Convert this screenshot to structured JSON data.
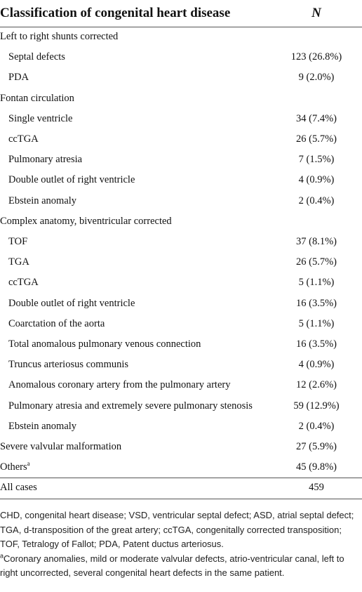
{
  "table": {
    "header": [
      "Classification of congenital heart disease",
      "N"
    ],
    "rows": [
      {
        "label": "Left to right shunts corrected",
        "indent": false
      },
      {
        "label": "Septal defects",
        "n": "123 (26.8%)",
        "indent": true
      },
      {
        "label": "PDA",
        "n": "9 (2.0%)",
        "indent": true
      },
      {
        "label": "Fontan circulation",
        "indent": false
      },
      {
        "label": "Single ventricle",
        "n": "34 (7.4%)",
        "indent": true
      },
      {
        "label": "ccTGA",
        "n": "26 (5.7%)",
        "indent": true
      },
      {
        "label": "Pulmonary atresia",
        "n": "7 (1.5%)",
        "indent": true
      },
      {
        "label": "Double outlet of right ventricle",
        "n": "4 (0.9%)",
        "indent": true
      },
      {
        "label": "Ebstein anomaly",
        "n": "2 (0.4%)",
        "indent": true
      },
      {
        "label": "Complex anatomy, biventricular corrected",
        "indent": false
      },
      {
        "label": "TOF",
        "n": "37 (8.1%)",
        "indent": true
      },
      {
        "label": "TGA",
        "n": "26 (5.7%)",
        "indent": true
      },
      {
        "label": "ccTGA",
        "n": "5 (1.1%)",
        "indent": true
      },
      {
        "label": "Double outlet of right ventricle",
        "n": "16 (3.5%)",
        "indent": true
      },
      {
        "label": "Coarctation of the aorta",
        "n": "5 (1.1%)",
        "indent": true
      },
      {
        "label": "Total anomalous pulmonary venous connection",
        "n": "16 (3.5%)",
        "indent": true
      },
      {
        "label": "Truncus arteriosus communis",
        "n": "4 (0.9%)",
        "indent": true
      },
      {
        "label": "Anomalous coronary artery from the pulmonary artery",
        "n": "12 (2.6%)",
        "indent": true
      },
      {
        "label": "Pulmonary atresia and extremely severe pulmonary stenosis",
        "n": "59 (12.9%)",
        "indent": true
      },
      {
        "label": "Ebstein anomaly",
        "n": "2 (0.4%)",
        "indent": true
      },
      {
        "label": "Severe valvular malformation",
        "n": "27 (5.9%)",
        "indent": false
      },
      {
        "label": "Others",
        "note": "a",
        "n": "45 (9.8%)",
        "indent": false
      },
      {
        "label": "All cases",
        "n": "459",
        "indent": false,
        "rule_above": true
      }
    ]
  },
  "footnotes": [
    "CHD, congenital heart disease; VSD, ventricular septal defect; ASD, atrial septal defect; TGA, d-transposition of the great artery; ccTGA, congenitally corrected transposition; TOF, Tetralogy of Fallot; PDA, Patent ductus arteriosus.",
    {
      "mark": "a",
      "text": "Coronary anomalies, mild or moderate valvular defects, atrio-ventricular canal, left to right uncorrected, several congenital heart defects in the same patient."
    }
  ]
}
